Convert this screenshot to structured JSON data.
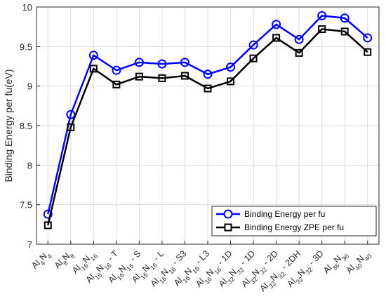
{
  "chart_data": {
    "type": "line",
    "ylabel": "Binding Energy per fu(eV)",
    "xlabel": "",
    "ylim": [
      7,
      10
    ],
    "yticks": [
      "7",
      "7.5",
      "8",
      "8.5",
      "9",
      "9.5",
      "10"
    ],
    "grid": true,
    "legend_position": "bottom-right",
    "categories": [
      [
        {
          "t": "Al"
        },
        {
          "t": "4",
          "s": 1
        },
        {
          "t": "N"
        },
        {
          "t": "4",
          "s": 1
        }
      ],
      [
        {
          "t": "Al"
        },
        {
          "t": "8",
          "s": 1
        },
        {
          "t": "N"
        },
        {
          "t": "8",
          "s": 1
        }
      ],
      [
        {
          "t": "Al"
        },
        {
          "t": "16",
          "s": 1
        },
        {
          "t": "N"
        },
        {
          "t": "16",
          "s": 1
        }
      ],
      [
        {
          "t": "Al"
        },
        {
          "t": "16",
          "s": 1
        },
        {
          "t": "N"
        },
        {
          "t": "16",
          "s": 1
        },
        {
          "t": " - T"
        }
      ],
      [
        {
          "t": "Al"
        },
        {
          "t": "16",
          "s": 1
        },
        {
          "t": "N"
        },
        {
          "t": "16",
          "s": 1
        },
        {
          "t": " - S"
        }
      ],
      [
        {
          "t": "Al"
        },
        {
          "t": "16",
          "s": 1
        },
        {
          "t": "N"
        },
        {
          "t": "16",
          "s": 1
        },
        {
          "t": " - L"
        }
      ],
      [
        {
          "t": "Al"
        },
        {
          "t": "16",
          "s": 1
        },
        {
          "t": "N"
        },
        {
          "t": "16",
          "s": 1
        },
        {
          "t": " - S3"
        }
      ],
      [
        {
          "t": "Al"
        },
        {
          "t": "16",
          "s": 1
        },
        {
          "t": "N"
        },
        {
          "t": "16",
          "s": 1
        },
        {
          "t": " - L3"
        }
      ],
      [
        {
          "t": "Al"
        },
        {
          "t": "16",
          "s": 1
        },
        {
          "t": "N"
        },
        {
          "t": "16",
          "s": 1
        },
        {
          "t": " - 1D"
        }
      ],
      [
        {
          "t": "Al"
        },
        {
          "t": "32",
          "s": 1
        },
        {
          "t": "N"
        },
        {
          "t": "32",
          "s": 1
        },
        {
          "t": " - 1D"
        }
      ],
      [
        {
          "t": "Al"
        },
        {
          "t": "32",
          "s": 1
        },
        {
          "t": "N"
        },
        {
          "t": "32",
          "s": 1
        },
        {
          "t": " - 2D"
        }
      ],
      [
        {
          "t": "Al"
        },
        {
          "t": "32",
          "s": 1
        },
        {
          "t": "N"
        },
        {
          "t": "32",
          "s": 1
        },
        {
          "t": " - 2DH"
        }
      ],
      [
        {
          "t": "Al"
        },
        {
          "t": "32",
          "s": 1
        },
        {
          "t": "N"
        },
        {
          "t": "32",
          "s": 1
        },
        {
          "t": " - 3D"
        }
      ],
      [
        {
          "t": "Al"
        },
        {
          "t": "36",
          "s": 1
        },
        {
          "t": "N"
        },
        {
          "t": "36",
          "s": 1
        }
      ],
      [
        {
          "t": "Al"
        },
        {
          "t": "40",
          "s": 1
        },
        {
          "t": "N"
        },
        {
          "t": "40",
          "s": 1
        }
      ]
    ],
    "series": [
      {
        "name": "Binding Energy per fu",
        "color": "#0000ff",
        "marker": "circle",
        "values": [
          7.38,
          8.64,
          9.39,
          9.2,
          9.3,
          9.28,
          9.3,
          9.15,
          9.24,
          9.52,
          9.78,
          9.59,
          9.89,
          9.86,
          9.61
        ]
      },
      {
        "name": "Binding Energy ZPE per fu",
        "color": "#000000",
        "marker": "square",
        "values": [
          7.24,
          8.48,
          9.22,
          9.02,
          9.12,
          9.1,
          9.13,
          8.97,
          9.06,
          9.35,
          9.61,
          9.42,
          9.72,
          9.69,
          9.43
        ]
      }
    ]
  }
}
